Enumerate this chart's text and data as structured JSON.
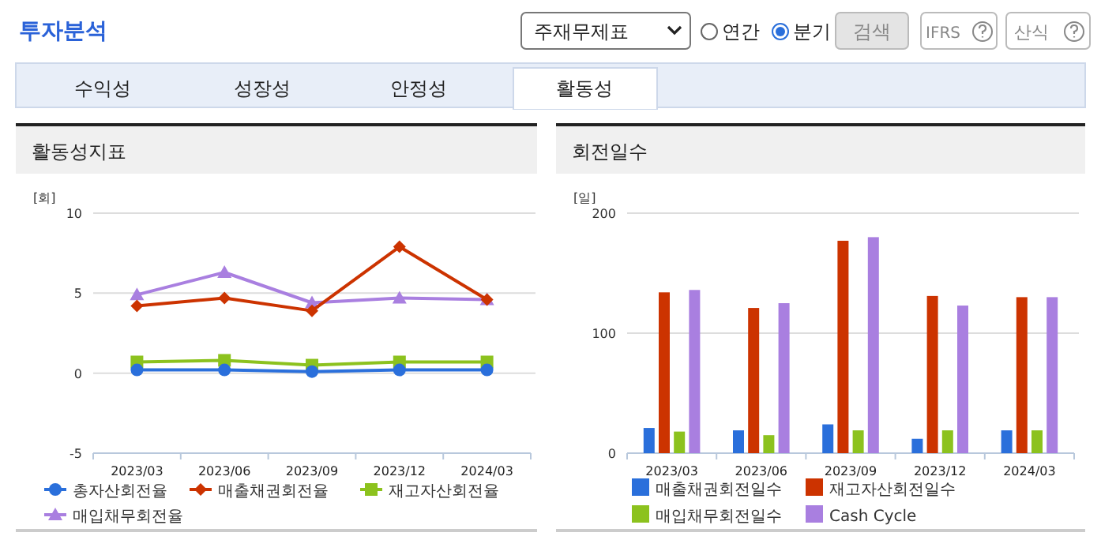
{
  "chart_data": [
    {
      "type": "other",
      "title": "투자분석",
      "annotations": [
        "주재무제표",
        "연간",
        "분기",
        "검색",
        "IFRS",
        "산식",
        "수익성",
        "성장성",
        "안정성",
        "활동성"
      ]
    },
    {
      "type": "line",
      "title": "활동성지표",
      "ylabel": "[회]",
      "categories": [
        "2023/03",
        "2023/06",
        "2023/09",
        "2023/12",
        "2024/03"
      ],
      "ylim": [
        -5,
        10
      ],
      "yticks": [
        -5,
        0,
        5,
        10
      ],
      "grid": "y",
      "legend": "bottom",
      "series": [
        {
          "name": "총자산회전율",
          "color": "#2a6fdb",
          "marker": "circle",
          "values": [
            0.2,
            0.2,
            0.1,
            0.2,
            0.2
          ]
        },
        {
          "name": "매출채권회전율",
          "color": "#cc3300",
          "marker": "diamond",
          "values": [
            4.2,
            4.7,
            3.9,
            7.9,
            4.6
          ]
        },
        {
          "name": "재고자산회전율",
          "color": "#8cc21e",
          "marker": "square",
          "values": [
            0.7,
            0.8,
            0.5,
            0.7,
            0.7
          ]
        },
        {
          "name": "매입채무회전율",
          "color": "#a97fe0",
          "marker": "triangle",
          "values": [
            4.9,
            6.3,
            4.4,
            4.7,
            4.6
          ]
        }
      ]
    },
    {
      "type": "bar",
      "title": "회전일수",
      "ylabel": "[일]",
      "categories": [
        "2023/03",
        "2023/06",
        "2023/09",
        "2023/12",
        "2024/03"
      ],
      "ylim": [
        0,
        200
      ],
      "yticks": [
        0,
        100,
        200
      ],
      "grid": "y",
      "legend": "bottom",
      "series": [
        {
          "name": "매출채권회전일수",
          "color": "#2a6fdb",
          "values": [
            21,
            19,
            24,
            12,
            19
          ]
        },
        {
          "name": "재고자산회전일수",
          "color": "#cc3300",
          "values": [
            134,
            121,
            177,
            131,
            130
          ]
        },
        {
          "name": "매입채무회전일수",
          "color": "#8cc21e",
          "values": [
            18,
            15,
            19,
            19,
            19
          ]
        },
        {
          "name": "Cash Cycle",
          "color": "#a97fe0",
          "values": [
            136,
            125,
            180,
            123,
            130
          ]
        }
      ]
    }
  ]
}
